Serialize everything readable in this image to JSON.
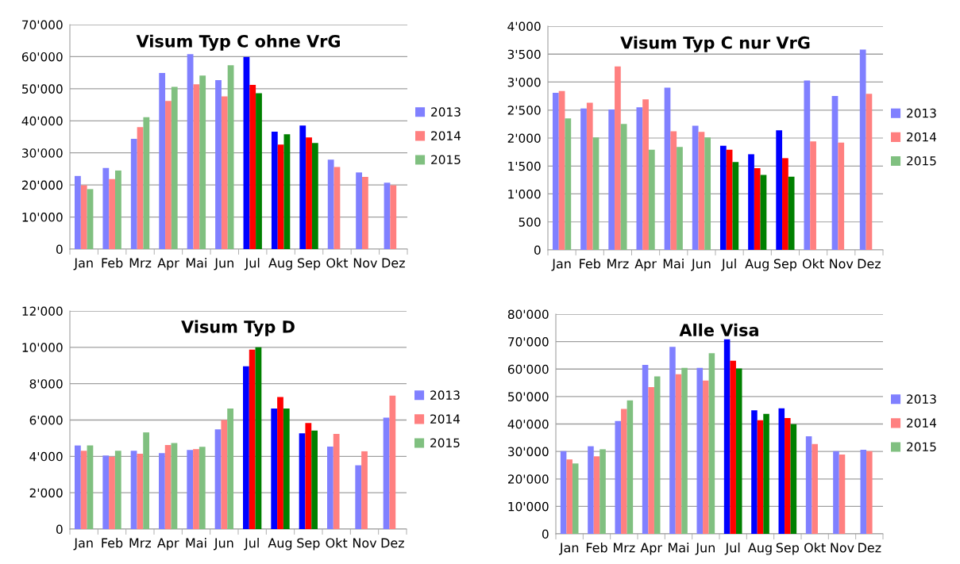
{
  "chart_data": [
    {
      "type": "bar",
      "title": "Visum Typ C ohne VrG",
      "categories": [
        "Jan",
        "Feb",
        "Mrz",
        "Apr",
        "Mai",
        "Jun",
        "Jul",
        "Aug",
        "Sep",
        "Okt",
        "Nov",
        "Dez"
      ],
      "ylim": [
        0,
        70000
      ],
      "yticks": [
        0,
        {
          "value": 10000,
          "label": "10'000"
        },
        {
          "value": 20000,
          "label": "20'000"
        },
        {
          "value": 30000,
          "label": "30'000"
        },
        {
          "value": 40000,
          "label": "40'000"
        },
        {
          "value": 50000,
          "label": "50'000"
        },
        {
          "value": 60000,
          "label": "60'000"
        },
        {
          "value": 70000,
          "label": "70'000"
        }
      ],
      "grid": "y",
      "legend": "right",
      "series": [
        {
          "name": "2013",
          "color": "#8080ff",
          "colors": [
            "#8080ff",
            "#8080ff",
            "#8080ff",
            "#8080ff",
            "#8080ff",
            "#8080ff",
            "#0000ff",
            "#0000ff",
            "#0000ff",
            "#8080ff",
            "#8080ff",
            "#8080ff"
          ],
          "values": [
            22800,
            25300,
            34400,
            54900,
            60800,
            52700,
            59900,
            36600,
            38500,
            27900,
            23900,
            20700
          ]
        },
        {
          "name": "2014",
          "color": "#ff8080",
          "colors": [
            "#ff8080",
            "#ff8080",
            "#ff8080",
            "#ff8080",
            "#ff8080",
            "#ff8080",
            "#ff0000",
            "#ff0000",
            "#ff0000",
            "#ff8080",
            "#ff8080",
            "#ff8080"
          ],
          "values": [
            19900,
            21800,
            38000,
            46200,
            51400,
            47600,
            51200,
            32600,
            34800,
            25600,
            22500,
            19900
          ]
        },
        {
          "name": "2015",
          "color": "#80c080",
          "colors": [
            "#80c080",
            "#80c080",
            "#80c080",
            "#80c080",
            "#80c080",
            "#80c080",
            "#008000",
            "#008000",
            "#008000",
            "#80c080",
            "#80c080",
            "#80c080"
          ],
          "values": [
            18700,
            24500,
            41100,
            50600,
            54100,
            57300,
            48600,
            35800,
            33100,
            null,
            null,
            null
          ]
        }
      ]
    },
    {
      "type": "bar",
      "title": "Visum Typ C nur VrG",
      "categories": [
        "Jan",
        "Feb",
        "Mrz",
        "Apr",
        "Mai",
        "Jun",
        "Jul",
        "Aug",
        "Sep",
        "Okt",
        "Nov",
        "Dez"
      ],
      "ylim": [
        0,
        4000
      ],
      "yticks": [
        0,
        500,
        {
          "value": 1000,
          "label": "1'000"
        },
        {
          "value": 1500,
          "label": "1'500"
        },
        {
          "value": 2000,
          "label": "2'000"
        },
        {
          "value": 2500,
          "label": "2'500"
        },
        {
          "value": 3000,
          "label": "3'000"
        },
        {
          "value": 3500,
          "label": "3'500"
        },
        {
          "value": 4000,
          "label": "4'000"
        }
      ],
      "grid": "y",
      "legend": "right",
      "series": [
        {
          "name": "2013",
          "color": "#8080ff",
          "colors": [
            "#8080ff",
            "#8080ff",
            "#8080ff",
            "#8080ff",
            "#8080ff",
            "#8080ff",
            "#0000ff",
            "#0000ff",
            "#0000ff",
            "#8080ff",
            "#8080ff",
            "#8080ff"
          ],
          "values": [
            2810,
            2530,
            2510,
            2550,
            2900,
            2220,
            1860,
            1710,
            2140,
            3030,
            2750,
            3580
          ]
        },
        {
          "name": "2014",
          "color": "#ff8080",
          "colors": [
            "#ff8080",
            "#ff8080",
            "#ff8080",
            "#ff8080",
            "#ff8080",
            "#ff8080",
            "#ff0000",
            "#ff0000",
            "#ff0000",
            "#ff8080",
            "#ff8080",
            "#ff8080"
          ],
          "values": [
            2840,
            2630,
            3280,
            2690,
            2120,
            2110,
            1790,
            1460,
            1640,
            1940,
            1920,
            2790
          ]
        },
        {
          "name": "2015",
          "color": "#80c080",
          "colors": [
            "#80c080",
            "#80c080",
            "#80c080",
            "#80c080",
            "#80c080",
            "#80c080",
            "#008000",
            "#008000",
            "#008000",
            "#80c080",
            "#80c080",
            "#80c080"
          ],
          "values": [
            2350,
            2010,
            2250,
            1790,
            1840,
            2010,
            1570,
            1340,
            1310,
            null,
            null,
            null
          ]
        }
      ]
    },
    {
      "type": "bar",
      "title": "Visum Typ D",
      "categories": [
        "Jan",
        "Feb",
        "Mrz",
        "Apr",
        "Mai",
        "Jun",
        "Jul",
        "Aug",
        "Sep",
        "Okt",
        "Nov",
        "Dez"
      ],
      "ylim": [
        0,
        12000
      ],
      "yticks": [
        0,
        {
          "value": 2000,
          "label": "2'000"
        },
        {
          "value": 4000,
          "label": "4'000"
        },
        {
          "value": 6000,
          "label": "6'000"
        },
        {
          "value": 8000,
          "label": "8'000"
        },
        {
          "value": 10000,
          "label": "10'000"
        },
        {
          "value": 12000,
          "label": "12'000"
        }
      ],
      "grid": "y",
      "legend": "right",
      "series": [
        {
          "name": "2013",
          "color": "#8080ff",
          "colors": [
            "#8080ff",
            "#8080ff",
            "#8080ff",
            "#8080ff",
            "#8080ff",
            "#8080ff",
            "#0000ff",
            "#0000ff",
            "#0000ff",
            "#8080ff",
            "#8080ff",
            "#8080ff"
          ],
          "values": [
            4600,
            4050,
            4310,
            4180,
            4350,
            5490,
            8960,
            6630,
            5270,
            4540,
            3510,
            6130
          ]
        },
        {
          "name": "2014",
          "color": "#ff8080",
          "colors": [
            "#ff8080",
            "#ff8080",
            "#ff8080",
            "#ff8080",
            "#ff8080",
            "#ff8080",
            "#ff0000",
            "#ff0000",
            "#ff0000",
            "#ff8080",
            "#ff8080",
            "#ff8080"
          ],
          "values": [
            4310,
            3980,
            4140,
            4630,
            4400,
            6000,
            9870,
            7270,
            5840,
            5240,
            4280,
            7340
          ]
        },
        {
          "name": "2015",
          "color": "#80c080",
          "colors": [
            "#80c080",
            "#80c080",
            "#80c080",
            "#80c080",
            "#80c080",
            "#80c080",
            "#008000",
            "#008000",
            "#008000",
            "#80c080",
            "#80c080",
            "#80c080"
          ],
          "values": [
            4600,
            4310,
            5320,
            4730,
            4530,
            6630,
            10000,
            6630,
            5420,
            null,
            null,
            null
          ]
        }
      ]
    },
    {
      "type": "bar",
      "title": "Alle Visa",
      "categories": [
        "Jan",
        "Feb",
        "Mrz",
        "Apr",
        "Mai",
        "Jun",
        "Jul",
        "Aug",
        "Sep",
        "Okt",
        "Nov",
        "Dez"
      ],
      "ylim": [
        0,
        80000
      ],
      "yticks": [
        0,
        {
          "value": 10000,
          "label": "10'000"
        },
        {
          "value": 20000,
          "label": "20'000"
        },
        {
          "value": 30000,
          "label": "30'000"
        },
        {
          "value": 40000,
          "label": "40'000"
        },
        {
          "value": 50000,
          "label": "50'000"
        },
        {
          "value": 60000,
          "label": "60'000"
        },
        {
          "value": 70000,
          "label": "70'000"
        },
        {
          "value": 80000,
          "label": "80'000"
        }
      ],
      "grid": "y",
      "legend": "right",
      "series": [
        {
          "name": "2013",
          "color": "#8080ff",
          "colors": [
            "#8080ff",
            "#8080ff",
            "#8080ff",
            "#8080ff",
            "#8080ff",
            "#8080ff",
            "#0000ff",
            "#0000ff",
            "#0000ff",
            "#8080ff",
            "#8080ff",
            "#8080ff"
          ],
          "values": [
            30100,
            31900,
            41100,
            61500,
            68100,
            60400,
            70800,
            45000,
            45700,
            35500,
            30100,
            30600
          ]
        },
        {
          "name": "2014",
          "color": "#ff8080",
          "colors": [
            "#ff8080",
            "#ff8080",
            "#ff8080",
            "#ff8080",
            "#ff8080",
            "#ff8080",
            "#ff0000",
            "#ff0000",
            "#ff0000",
            "#ff8080",
            "#ff8080",
            "#ff8080"
          ],
          "values": [
            27100,
            28200,
            45500,
            53400,
            58100,
            55800,
            63000,
            41400,
            42200,
            32700,
            28900,
            30100
          ]
        },
        {
          "name": "2015",
          "color": "#80c080",
          "colors": [
            "#80c080",
            "#80c080",
            "#80c080",
            "#80c080",
            "#80c080",
            "#80c080",
            "#008000",
            "#008000",
            "#008000",
            "#80c080",
            "#80c080",
            "#80c080"
          ],
          "values": [
            25600,
            30800,
            48600,
            57300,
            60400,
            65800,
            60200,
            43700,
            39900,
            null,
            null,
            null
          ]
        }
      ]
    }
  ]
}
